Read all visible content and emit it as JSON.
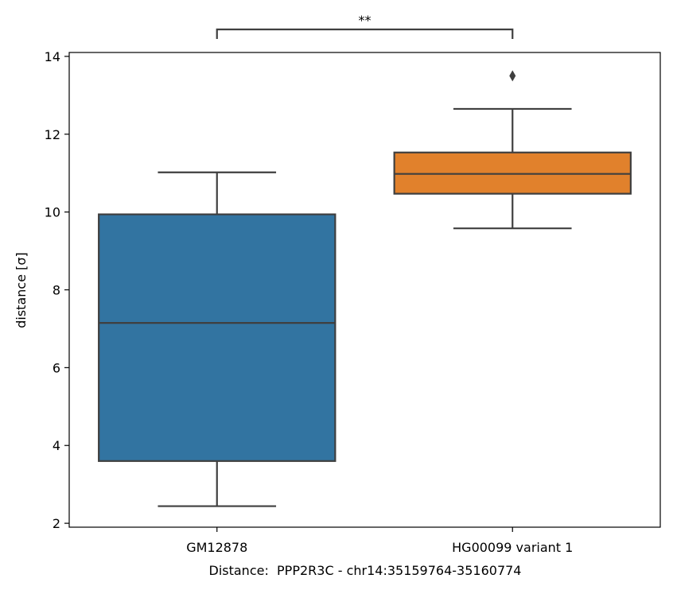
{
  "chart_data": {
    "type": "box",
    "xlabel": "Distance:  PPP2R3C - chr14:35159764-35160774",
    "ylabel": "distance [σ]",
    "ylim": [
      1.9,
      14.1
    ],
    "yticks": [
      2,
      4,
      6,
      8,
      10,
      12,
      14
    ],
    "grid": false,
    "categories": [
      "GM12878",
      "HG00099 variant 1"
    ],
    "boxes": [
      {
        "category": "GM12878",
        "whisker_low": 2.44,
        "q1": 3.6,
        "median": 7.15,
        "q3": 9.94,
        "whisker_high": 11.02,
        "outliers": [],
        "color": "#3274a1"
      },
      {
        "category": "HG00099 variant 1",
        "whisker_low": 9.58,
        "q1": 10.47,
        "median": 10.98,
        "q3": 11.53,
        "whisker_high": 12.65,
        "outliers": [
          13.5
        ],
        "color": "#e1812c"
      }
    ],
    "significance": {
      "from": 0,
      "to": 1,
      "label": "**"
    }
  },
  "colors": {
    "edge": "#3f3f3f",
    "axis": "#000000",
    "background": "#ffffff"
  }
}
